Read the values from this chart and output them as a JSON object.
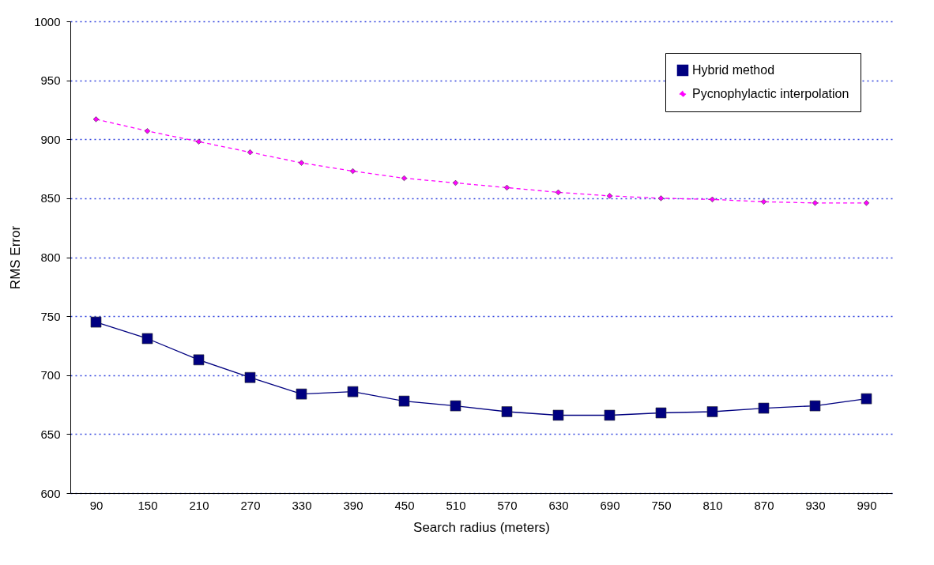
{
  "chart_data": {
    "type": "line",
    "xlabel": "Search radius (meters)",
    "ylabel": "RMS Error",
    "categories": [
      "90",
      "150",
      "210",
      "270",
      "330",
      "390",
      "450",
      "510",
      "570",
      "630",
      "690",
      "750",
      "810",
      "870",
      "930",
      "990"
    ],
    "series": [
      {
        "name": "Hybrid method",
        "color": "#000080",
        "marker": "square",
        "line_style": "solid",
        "values": [
          745,
          731,
          713,
          698,
          684,
          686,
          678,
          674,
          669,
          666,
          666,
          668,
          669,
          672,
          674,
          680
        ]
      },
      {
        "name": "Pycnophylactic interpolation",
        "color": "#ff00ff",
        "marker": "diamond",
        "line_style": "dashed",
        "values": [
          917,
          907,
          898,
          889,
          880,
          873,
          867,
          863,
          859,
          855,
          852,
          850,
          849,
          847,
          846,
          846
        ]
      }
    ],
    "ylim": [
      600,
      1000
    ],
    "yticks": [
      600,
      650,
      700,
      750,
      800,
      850,
      900,
      950,
      1000
    ],
    "grid": "y",
    "legend": "top right"
  }
}
